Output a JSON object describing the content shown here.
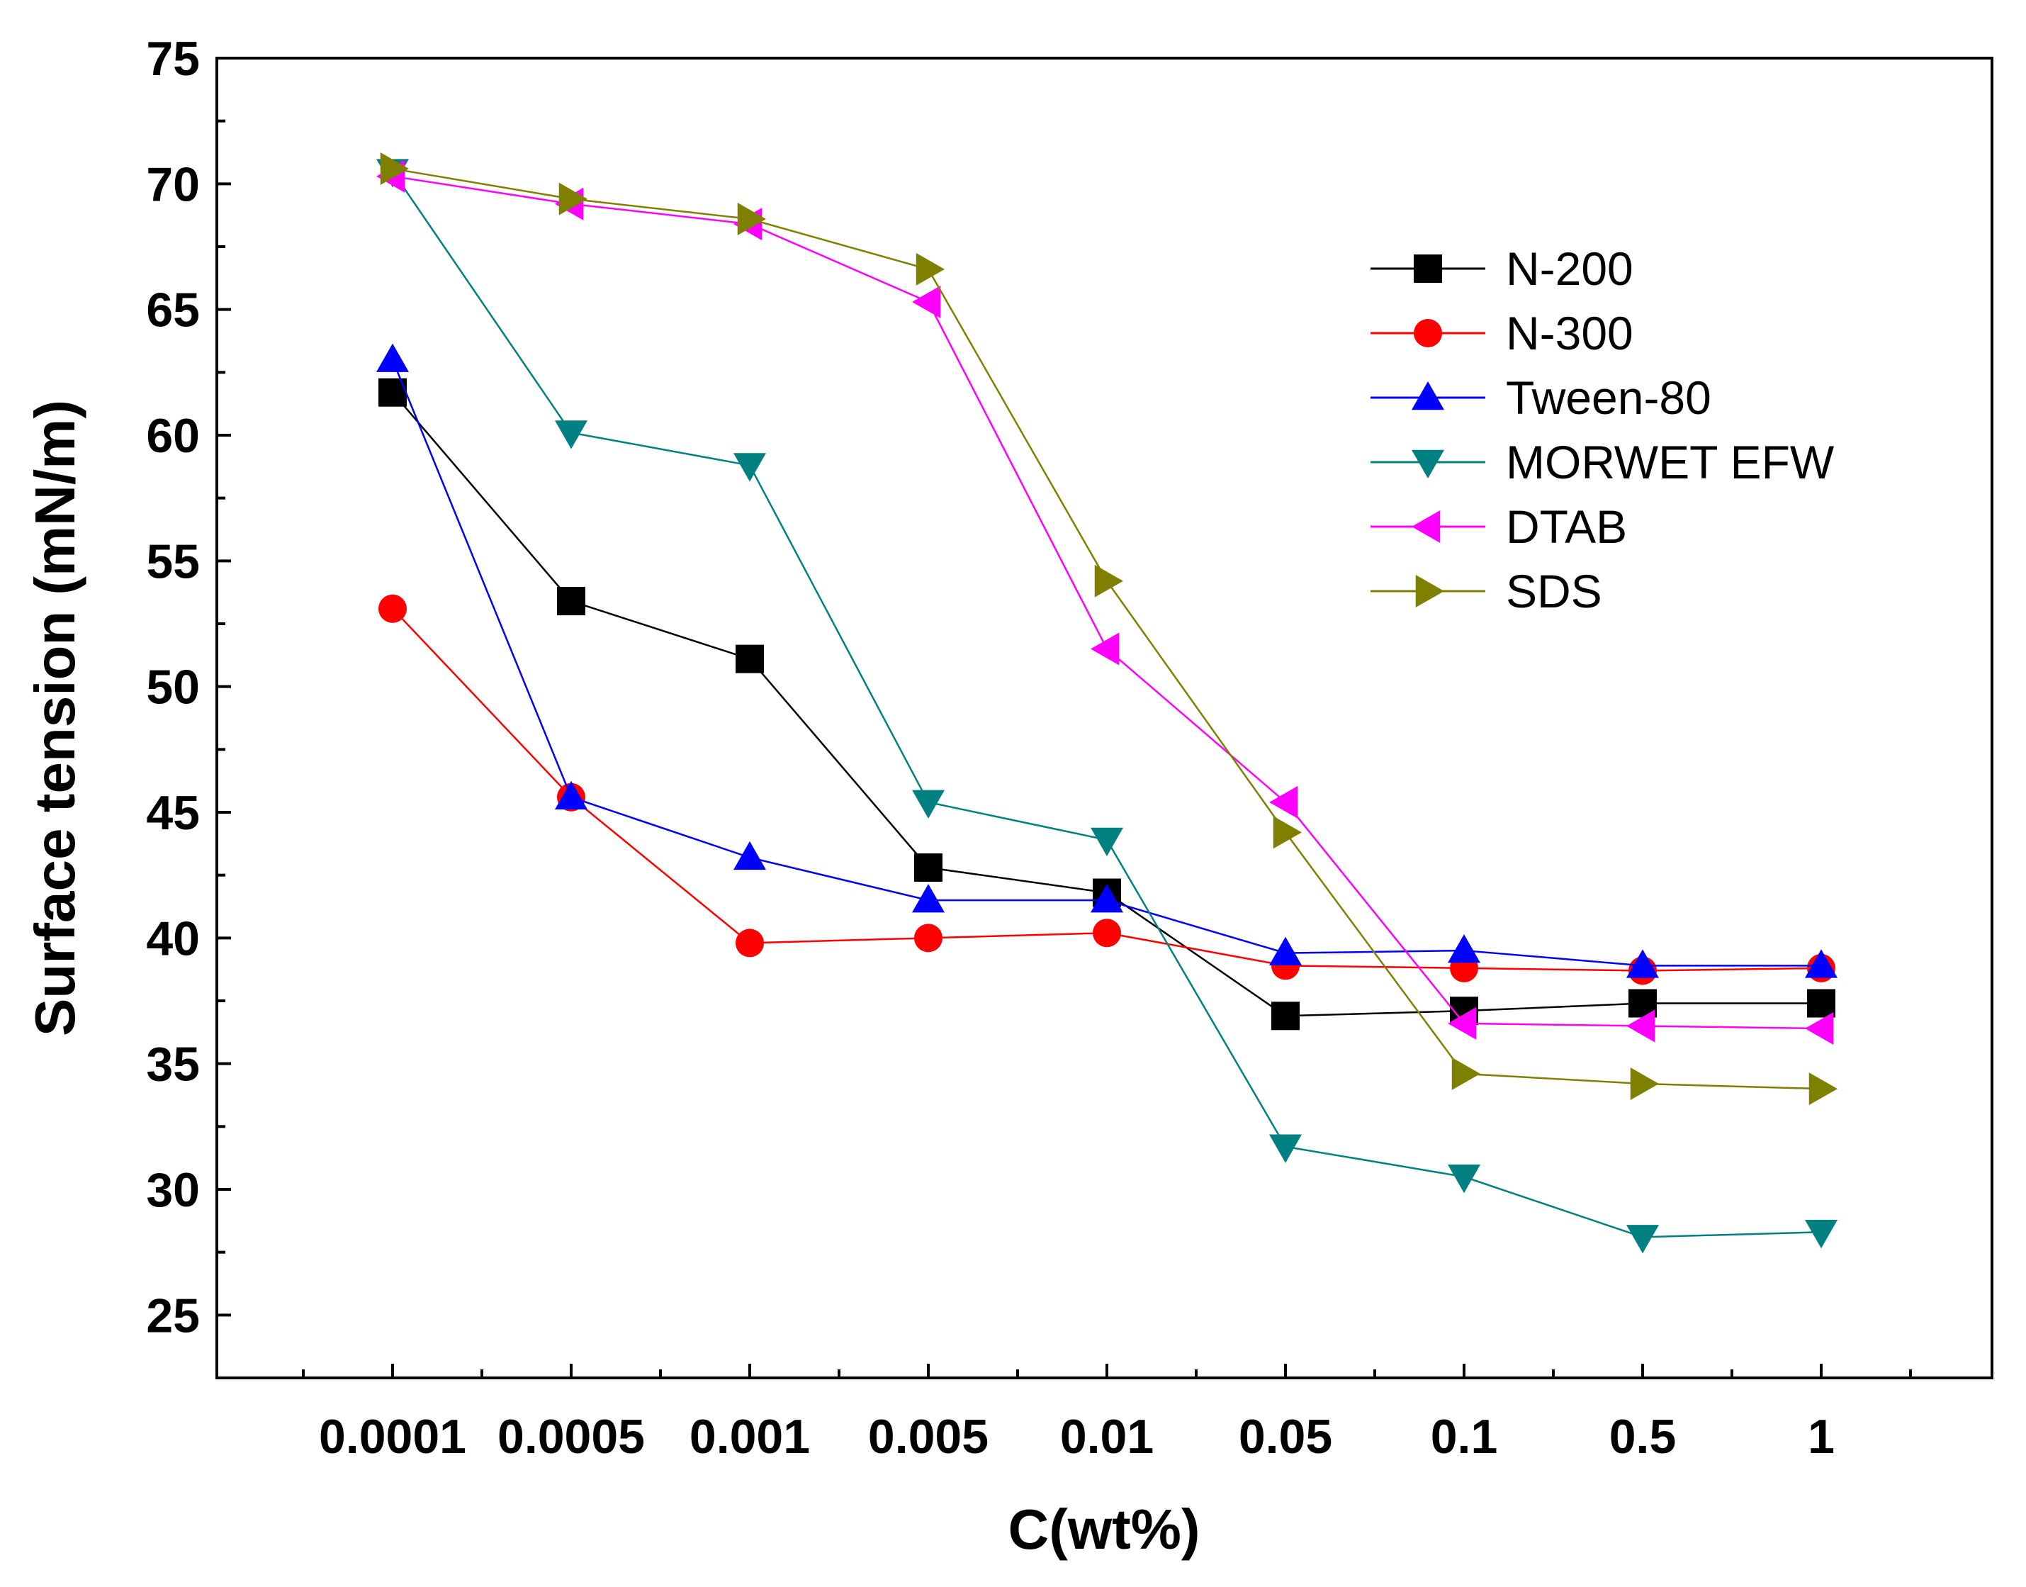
{
  "chart_data": {
    "type": "line",
    "title": "",
    "xlabel": "C(wt%)",
    "ylabel": "Surface tension (mN/m)",
    "categories": [
      "0.0001",
      "0.0005",
      "0.001",
      "0.005",
      "0.01",
      "0.05",
      "0.1",
      "0.5",
      "1"
    ],
    "ylim": [
      22.5,
      75
    ],
    "yticks": [
      25,
      30,
      35,
      40,
      45,
      50,
      55,
      60,
      65,
      70,
      75
    ],
    "grid": false,
    "legend_position": "top-right",
    "series": [
      {
        "name": "N-200",
        "color": "#000000",
        "marker": "square",
        "values": [
          61.7,
          53.4,
          51.1,
          42.8,
          41.8,
          36.9,
          37.1,
          37.4,
          37.4
        ]
      },
      {
        "name": "N-300",
        "color": "#ff0000",
        "marker": "circle",
        "values": [
          53.1,
          45.6,
          39.8,
          40.0,
          40.2,
          38.9,
          38.8,
          38.7,
          38.8
        ]
      },
      {
        "name": "Tween-80",
        "color": "#0000ff",
        "marker": "triangle-up",
        "values": [
          63.0,
          45.6,
          43.2,
          41.5,
          41.5,
          39.4,
          39.5,
          38.9,
          38.9
        ]
      },
      {
        "name": "MORWET EFW",
        "color": "#008080",
        "marker": "triangle-down",
        "values": [
          70.5,
          60.1,
          58.8,
          45.4,
          43.9,
          31.7,
          30.5,
          28.1,
          28.3
        ]
      },
      {
        "name": "DTAB",
        "color": "#ff00ff",
        "marker": "triangle-left",
        "values": [
          70.3,
          69.2,
          68.4,
          65.3,
          51.5,
          45.4,
          36.6,
          36.5,
          36.4
        ]
      },
      {
        "name": "SDS",
        "color": "#808000",
        "marker": "triangle-right",
        "values": [
          70.6,
          69.4,
          68.6,
          66.6,
          54.2,
          44.2,
          34.6,
          34.2,
          34.0
        ]
      }
    ]
  }
}
